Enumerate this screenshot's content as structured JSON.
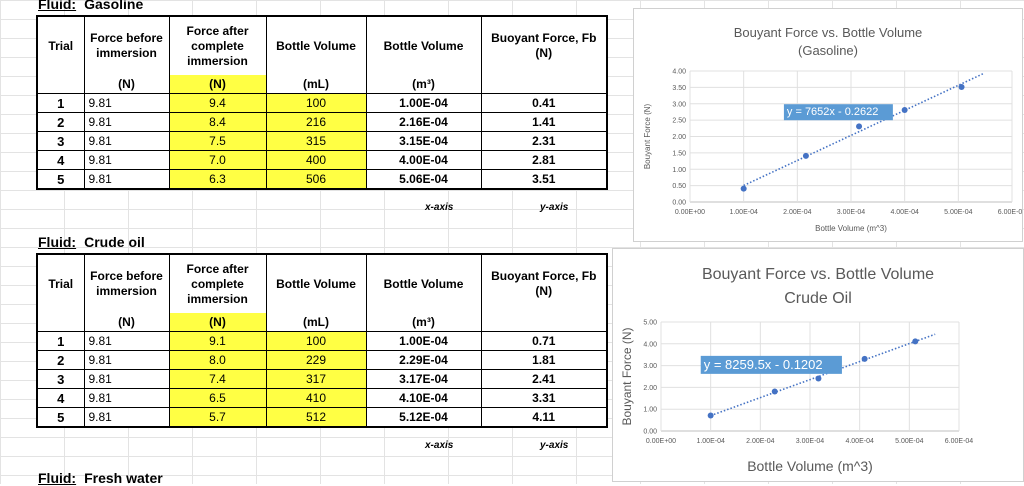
{
  "sections": [
    {
      "label": "Fluid:",
      "name": "Gasoline",
      "headers": {
        "trial": "Trial",
        "before": "Force before immersion",
        "after": "Force after complete immersion",
        "bottle_ml": "Bottle Volume",
        "bottle_m3": "Bottle Volume",
        "buoyant": "Buoyant Force, Fb (N)"
      },
      "units": {
        "before": "(N)",
        "after": "(N)",
        "bottle_ml": "(mL)",
        "bottle_m3": "(m³)"
      },
      "rows": [
        {
          "trial": "1",
          "before": "9.81",
          "after": "9.4",
          "ml": "100",
          "m3": "1.00E-04",
          "fb": "0.41"
        },
        {
          "trial": "2",
          "before": "9.81",
          "after": "8.4",
          "ml": "216",
          "m3": "2.16E-04",
          "fb": "1.41"
        },
        {
          "trial": "3",
          "before": "9.81",
          "after": "7.5",
          "ml": "315",
          "m3": "3.15E-04",
          "fb": "2.31"
        },
        {
          "trial": "4",
          "before": "9.81",
          "after": "7.0",
          "ml": "400",
          "m3": "4.00E-04",
          "fb": "2.81"
        },
        {
          "trial": "5",
          "before": "9.81",
          "after": "6.3",
          "ml": "506",
          "m3": "5.06E-04",
          "fb": "3.51"
        }
      ],
      "axis_labels": {
        "x": "x-axis",
        "y": "y-axis"
      }
    },
    {
      "label": "Fluid:",
      "name": "Crude oil",
      "headers": {
        "trial": "Trial",
        "before": "Force before immersion",
        "after": "Force after complete immersion",
        "bottle_ml": "Bottle Volume",
        "bottle_m3": "Bottle Volume",
        "buoyant": "Buoyant Force, Fb (N)"
      },
      "units": {
        "before": "(N)",
        "after": "(N)",
        "bottle_ml": "(mL)",
        "bottle_m3": "(m³)"
      },
      "rows": [
        {
          "trial": "1",
          "before": "9.81",
          "after": "9.1",
          "ml": "100",
          "m3": "1.00E-04",
          "fb": "0.71"
        },
        {
          "trial": "2",
          "before": "9.81",
          "after": "8.0",
          "ml": "229",
          "m3": "2.29E-04",
          "fb": "1.81"
        },
        {
          "trial": "3",
          "before": "9.81",
          "after": "7.4",
          "ml": "317",
          "m3": "3.17E-04",
          "fb": "2.41"
        },
        {
          "trial": "4",
          "before": "9.81",
          "after": "6.5",
          "ml": "410",
          "m3": "4.10E-04",
          "fb": "3.31"
        },
        {
          "trial": "5",
          "before": "9.81",
          "after": "5.7",
          "ml": "512",
          "m3": "5.12E-04",
          "fb": "4.11"
        }
      ],
      "axis_labels": {
        "x": "x-axis",
        "y": "y-axis"
      }
    },
    {
      "label": "Fluid:",
      "name": "Fresh water"
    }
  ],
  "colors": {
    "highlight": "#ffff44",
    "marker": "#4472c4",
    "trendline": "#4472c4",
    "equation_bg": "#5b9bd5"
  },
  "chart_data": [
    {
      "type": "scatter",
      "title": "Bouyant Force  vs. Bottle Volume",
      "subtitle": "(Gasoline)",
      "xlabel": "Bottle Volume (m^3)",
      "ylabel": "Bouyant Force (N)",
      "x": [
        0.0001,
        0.000216,
        0.000315,
        0.0004,
        0.000506
      ],
      "y": [
        0.41,
        1.41,
        2.31,
        2.81,
        3.51
      ],
      "xlim": [
        0,
        0.0006
      ],
      "ylim": [
        0,
        4
      ],
      "xticks": [
        "0.00E+00",
        "1.00E-04",
        "2.00E-04",
        "3.00E-04",
        "4.00E-04",
        "5.00E-04",
        "6.00E-04"
      ],
      "yticks": [
        "0.00",
        "0.50",
        "1.00",
        "1.50",
        "2.00",
        "2.50",
        "3.00",
        "3.50",
        "4.00"
      ],
      "trendline": {
        "slope": 7652,
        "intercept": -0.2622,
        "label": "y = 7652x - 0.2622"
      },
      "grid": true
    },
    {
      "type": "scatter",
      "title": "Bouyant Force  vs. Bottle Volume",
      "subtitle": "Crude Oil",
      "xlabel": "Bottle Volume (m^3)",
      "ylabel": "Bouyant Force (N)",
      "x": [
        0.0001,
        0.000229,
        0.000317,
        0.00041,
        0.000512
      ],
      "y": [
        0.71,
        1.81,
        2.41,
        3.31,
        4.11
      ],
      "xlim": [
        0,
        0.0006
      ],
      "ylim": [
        0,
        5
      ],
      "xticks": [
        "0.00E+00",
        "1.00E-04",
        "2.00E-04",
        "3.00E-04",
        "4.00E-04",
        "5.00E-04",
        "6.00E-04"
      ],
      "yticks": [
        "0.00",
        "1.00",
        "2.00",
        "3.00",
        "4.00",
        "5.00"
      ],
      "trendline": {
        "slope": 8259.5,
        "intercept": -0.1202,
        "label": "y = 8259.5x - 0.1202"
      },
      "grid": true
    }
  ]
}
